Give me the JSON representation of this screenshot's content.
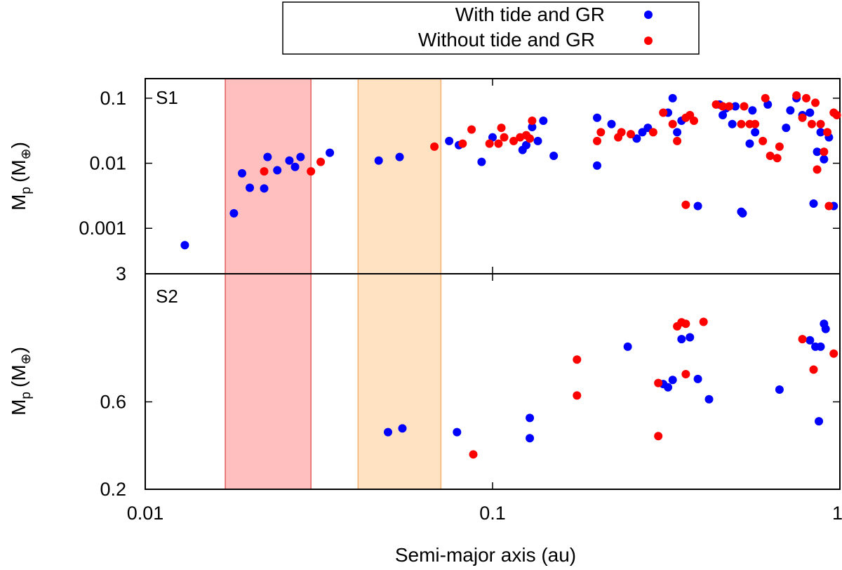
{
  "chart_data": {
    "type": "scatter",
    "x_label": "Semi-major axis (au)",
    "x_scale": "log",
    "x_range": [
      0.01,
      1
    ],
    "x_ticks": [
      {
        "value": 0.01,
        "label": "0.01"
      },
      {
        "value": 0.1,
        "label": "0.1"
      },
      {
        "value": 1,
        "label": "1"
      }
    ],
    "legend": {
      "position": "top-center",
      "entries": [
        {
          "series": "with",
          "label": "With tide and GR"
        },
        {
          "series": "without",
          "label": "Without tide and GR"
        }
      ]
    },
    "series_colors": {
      "with": "#0000ff",
      "without": "#ff0000"
    },
    "shaded_bands": [
      {
        "x_range": [
          0.017,
          0.03
        ],
        "fill": "#ffbfbf",
        "stroke": "#e06060"
      },
      {
        "x_range": [
          0.041,
          0.071
        ],
        "fill": "#ffe2c2",
        "stroke": "#f4b070"
      }
    ],
    "panels": [
      {
        "label": "S1",
        "y_label_main": "M",
        "y_label_sub": "p",
        "y_label_unit": "(M",
        "y_label_unit_sub": "⊕",
        "y_label_close": ")",
        "y_scale": "log",
        "y_range": [
          0.0002,
          0.2
        ],
        "y_ticks": [
          {
            "value": 0.001,
            "label": "0.001"
          },
          {
            "value": 0.01,
            "label": "0.01"
          },
          {
            "value": 0.1,
            "label": "0.1"
          }
        ],
        "points_with": [
          [
            0.013,
            0.00055
          ],
          [
            0.018,
            0.0017
          ],
          [
            0.019,
            0.007
          ],
          [
            0.02,
            0.0042
          ],
          [
            0.022,
            0.0041
          ],
          [
            0.0225,
            0.0125
          ],
          [
            0.024,
            0.0078
          ],
          [
            0.026,
            0.011
          ],
          [
            0.027,
            0.0088
          ],
          [
            0.028,
            0.0125
          ],
          [
            0.034,
            0.0145
          ],
          [
            0.047,
            0.011
          ],
          [
            0.054,
            0.0125
          ],
          [
            0.075,
            0.022
          ],
          [
            0.08,
            0.019
          ],
          [
            0.093,
            0.0105
          ],
          [
            0.1,
            0.025
          ],
          [
            0.122,
            0.016
          ],
          [
            0.125,
            0.019
          ],
          [
            0.13,
            0.036
          ],
          [
            0.135,
            0.022
          ],
          [
            0.14,
            0.045
          ],
          [
            0.15,
            0.013
          ],
          [
            0.2,
            0.0092
          ],
          [
            0.2,
            0.05
          ],
          [
            0.22,
            0.04
          ],
          [
            0.26,
            0.024
          ],
          [
            0.27,
            0.03
          ],
          [
            0.28,
            0.035
          ],
          [
            0.32,
            0.06
          ],
          [
            0.33,
            0.1
          ],
          [
            0.34,
            0.03
          ],
          [
            0.39,
            0.0022
          ],
          [
            0.35,
            0.045
          ],
          [
            0.45,
            0.08
          ],
          [
            0.47,
            0.07
          ],
          [
            0.46,
            0.055
          ],
          [
            0.49,
            0.04
          ],
          [
            0.5,
            0.075
          ],
          [
            0.52,
            0.0018
          ],
          [
            0.525,
            0.0017
          ],
          [
            0.55,
            0.02
          ],
          [
            0.56,
            0.065
          ],
          [
            0.57,
            0.03
          ],
          [
            0.62,
            0.08
          ],
          [
            0.7,
            0.035
          ],
          [
            0.72,
            0.065
          ],
          [
            0.75,
            0.1
          ],
          [
            0.78,
            0.055
          ],
          [
            0.82,
            0.06
          ],
          [
            0.84,
            0.0024
          ],
          [
            0.86,
            0.015
          ],
          [
            0.88,
            0.03
          ],
          [
            0.9,
            0.0115
          ],
          [
            0.93,
            0.025
          ],
          [
            0.96,
            0.0022
          ]
        ],
        "points_without": [
          [
            0.022,
            0.0075
          ],
          [
            0.03,
            0.0075
          ],
          [
            0.032,
            0.0105
          ],
          [
            0.068,
            0.018
          ],
          [
            0.082,
            0.02
          ],
          [
            0.087,
            0.033
          ],
          [
            0.098,
            0.02
          ],
          [
            0.104,
            0.02
          ],
          [
            0.106,
            0.035
          ],
          [
            0.108,
            0.025
          ],
          [
            0.115,
            0.022
          ],
          [
            0.12,
            0.025
          ],
          [
            0.125,
            0.027
          ],
          [
            0.128,
            0.024
          ],
          [
            0.13,
            0.045
          ],
          [
            0.2,
            0.022
          ],
          [
            0.205,
            0.03
          ],
          [
            0.23,
            0.025
          ],
          [
            0.235,
            0.03
          ],
          [
            0.25,
            0.028
          ],
          [
            0.29,
            0.03
          ],
          [
            0.31,
            0.06
          ],
          [
            0.33,
            0.04
          ],
          [
            0.34,
            0.022
          ],
          [
            0.36,
            0.05
          ],
          [
            0.37,
            0.055
          ],
          [
            0.36,
            0.0023
          ],
          [
            0.38,
            0.045
          ],
          [
            0.44,
            0.08
          ],
          [
            0.46,
            0.075
          ],
          [
            0.48,
            0.075
          ],
          [
            0.52,
            0.04
          ],
          [
            0.53,
            0.075
          ],
          [
            0.55,
            0.04
          ],
          [
            0.57,
            0.04
          ],
          [
            0.6,
            0.022
          ],
          [
            0.61,
            0.1
          ],
          [
            0.63,
            0.013
          ],
          [
            0.66,
            0.012
          ],
          [
            0.67,
            0.018
          ],
          [
            0.75,
            0.11
          ],
          [
            0.78,
            0.05
          ],
          [
            0.8,
            0.1
          ],
          [
            0.83,
            0.04
          ],
          [
            0.85,
            0.085
          ],
          [
            0.86,
            0.008
          ],
          [
            0.88,
            0.04
          ],
          [
            0.9,
            0.015
          ],
          [
            0.92,
            0.03
          ],
          [
            0.93,
            0.0022
          ],
          [
            0.96,
            0.06
          ],
          [
            0.98,
            0.055
          ]
        ]
      },
      {
        "label": "S2",
        "y_label_main": "M",
        "y_label_sub": "p",
        "y_label_unit": "(M",
        "y_label_unit_sub": "⊕",
        "y_label_close": ")",
        "y_scale": "log",
        "y_range": [
          0.2,
          3
        ],
        "y_ticks": [
          {
            "value": 0.2,
            "label": "0.2"
          },
          {
            "value": 0.6,
            "label": "0.6"
          },
          {
            "value": 3,
            "label": "3"
          }
        ],
        "points_with": [
          [
            0.05,
            0.41
          ],
          [
            0.055,
            0.43
          ],
          [
            0.079,
            0.41
          ],
          [
            0.128,
            0.38
          ],
          [
            0.128,
            0.49
          ],
          [
            0.245,
            1.2
          ],
          [
            0.31,
            0.75
          ],
          [
            0.32,
            0.72
          ],
          [
            0.33,
            0.79
          ],
          [
            0.35,
            1.32
          ],
          [
            0.37,
            1.35
          ],
          [
            0.39,
            0.8
          ],
          [
            0.42,
            0.62
          ],
          [
            0.67,
            0.7
          ],
          [
            0.82,
            1.3
          ],
          [
            0.85,
            1.2
          ],
          [
            0.87,
            0.47
          ],
          [
            0.88,
            1.2
          ],
          [
            0.9,
            1.6
          ],
          [
            0.91,
            1.5
          ]
        ],
        "points_without": [
          [
            0.088,
            0.31
          ],
          [
            0.175,
            1.02
          ],
          [
            0.175,
            0.65
          ],
          [
            0.3,
            0.76
          ],
          [
            0.3,
            0.39
          ],
          [
            0.34,
            1.55
          ],
          [
            0.35,
            1.63
          ],
          [
            0.36,
            1.6
          ],
          [
            0.36,
            0.85
          ],
          [
            0.405,
            1.64
          ],
          [
            0.78,
            1.32
          ],
          [
            0.84,
            0.9
          ],
          [
            0.96,
            1.1
          ]
        ]
      }
    ]
  }
}
